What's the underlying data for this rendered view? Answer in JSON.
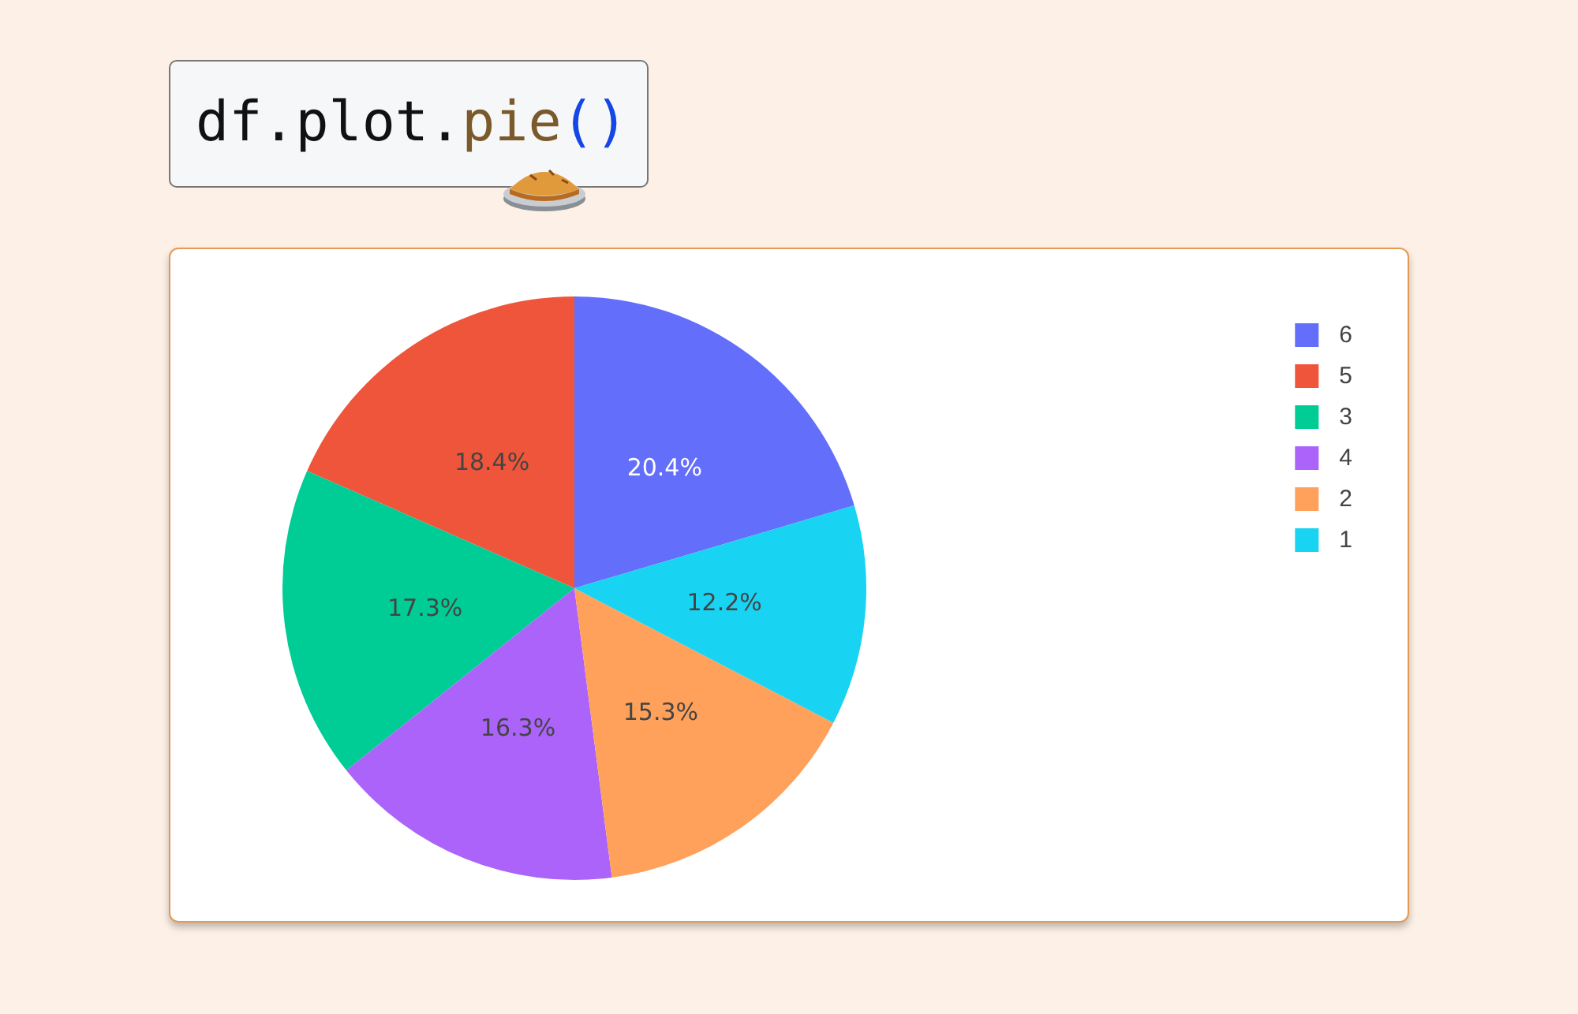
{
  "chart_data": {
    "type": "pie",
    "title": "df.plot.pie()",
    "categories": [
      "6",
      "5",
      "3",
      "4",
      "2",
      "1"
    ],
    "values": [
      20.4,
      18.4,
      17.3,
      16.3,
      15.3,
      12.2
    ],
    "value_labels": [
      "20.4%",
      "18.4%",
      "17.3%",
      "16.3%",
      "15.3%",
      "12.2%"
    ],
    "colors": [
      "#636efa",
      "#ef553b",
      "#00cc96",
      "#ab63fa",
      "#ffa15a",
      "#19d3f3"
    ],
    "legend": "top right"
  }
}
